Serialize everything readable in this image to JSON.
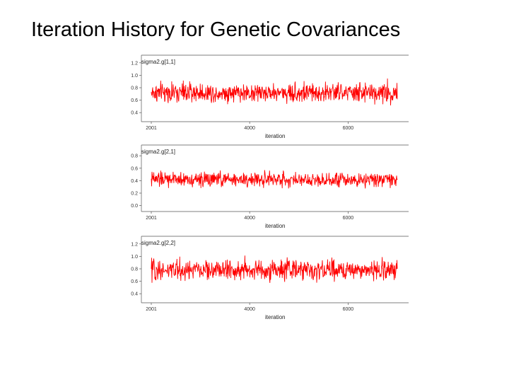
{
  "slide": {
    "title": "Iteration History for Genetic Covariances"
  },
  "chart_data": [
    {
      "type": "line",
      "title": "sigma2.g[1,1]",
      "xlabel": "iteration",
      "ylabel": "",
      "xlim": [
        2001,
        7000
      ],
      "ylim": [
        0.3,
        1.3
      ],
      "xticks": [
        2001,
        4000,
        6000
      ],
      "yticks": [
        0.4,
        0.6,
        0.8,
        1.0,
        1.2
      ],
      "ytick_labels": [
        "0.4",
        "0.6",
        "0.8",
        "1.0",
        "1.2"
      ],
      "series": [
        {
          "color": "#ff0000",
          "mean": 0.72,
          "typical_range": [
            0.56,
            0.9
          ],
          "max": 1.06,
          "min": 0.5
        }
      ]
    },
    {
      "type": "line",
      "title": "sigma2.g[2,1]",
      "xlabel": "iteration",
      "ylabel": "",
      "xlim": [
        2001,
        7000
      ],
      "ylim": [
        -0.05,
        0.95
      ],
      "xticks": [
        2001,
        4000,
        6000
      ],
      "yticks": [
        0.0,
        0.2,
        0.4,
        0.6,
        0.8
      ],
      "ytick_labels": [
        "0.0",
        "0.2",
        "0.4",
        "0.6",
        "0.8"
      ],
      "series": [
        {
          "color": "#ff0000",
          "mean": 0.42,
          "typical_range": [
            0.3,
            0.56
          ],
          "max": 0.68,
          "min": 0.24
        }
      ]
    },
    {
      "type": "line",
      "title": "sigma2.g[2,2]",
      "xlabel": "iteration",
      "ylabel": "",
      "xlim": [
        2001,
        7000
      ],
      "ylim": [
        0.3,
        1.3
      ],
      "xticks": [
        2001,
        4000,
        6000
      ],
      "yticks": [
        0.4,
        0.6,
        0.8,
        1.0,
        1.2
      ],
      "ytick_labels": [
        "0.4",
        "0.6",
        "0.8",
        "1.0",
        "1.2"
      ],
      "series": [
        {
          "color": "#ff0000",
          "mean": 0.78,
          "typical_range": [
            0.6,
            0.96
          ],
          "max": 1.06,
          "min": 0.5
        }
      ]
    }
  ]
}
